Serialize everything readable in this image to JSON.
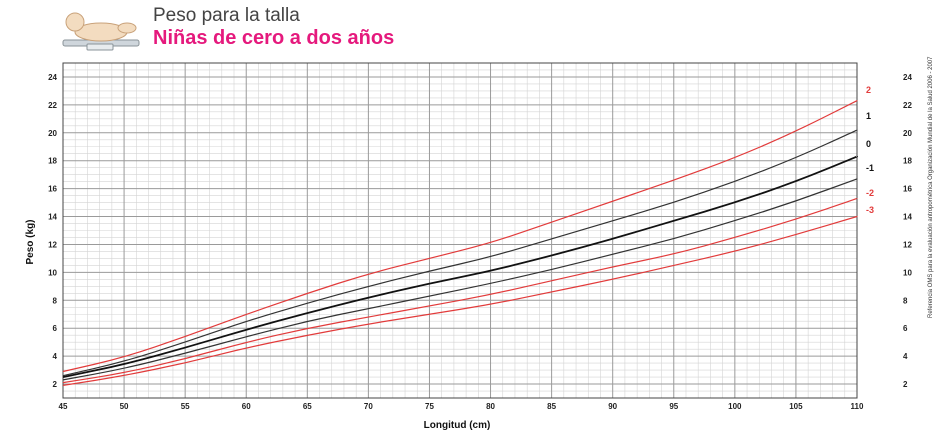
{
  "header": {
    "title": "Peso para la talla",
    "subtitle": "Niñas de cero a dos años"
  },
  "side_credit": "Referencia OMS para la evaluación antropométrica  Organización Mundial de la Salud  2006 - 2007",
  "colors": {
    "red_curve": "#e23b3b",
    "median_curve": "#111111",
    "dark_curve": "#333333",
    "grid_major": "#9a9a9a",
    "grid_minor": "#d4d4d4",
    "subtitle": "#e5197d"
  },
  "chart_data": {
    "type": "line",
    "title": "Peso para la talla",
    "subtitle": "Niñas de cero a dos años",
    "xlabel": "Longitud (cm)",
    "ylabel": "Peso (kg)",
    "xlim": [
      45,
      110
    ],
    "ylim": [
      1,
      25
    ],
    "x_ticks": [
      45,
      50,
      55,
      60,
      65,
      70,
      75,
      80,
      85,
      90,
      95,
      100,
      105,
      110
    ],
    "y_ticks": [
      2,
      4,
      6,
      8,
      10,
      12,
      14,
      16,
      18,
      20,
      22,
      24
    ],
    "grid": true,
    "x": [
      45,
      50,
      55,
      60,
      65,
      70,
      75,
      80,
      85,
      90,
      95,
      100,
      105,
      110
    ],
    "series": [
      {
        "name": "2",
        "color": "#e23b3b",
        "values": [
          2.9,
          3.9,
          5.4,
          7.0,
          8.5,
          9.9,
          11.0,
          12.1,
          13.6,
          15.1,
          16.6,
          18.2,
          20.1,
          22.3
        ]
      },
      {
        "name": "1",
        "color": "#333333",
        "values": [
          2.6,
          3.6,
          5.0,
          6.5,
          7.8,
          9.0,
          10.1,
          11.1,
          12.4,
          13.7,
          15.0,
          16.5,
          18.2,
          20.2
        ]
      },
      {
        "name": "0",
        "color": "#111111",
        "values": [
          2.5,
          3.4,
          4.6,
          5.9,
          7.1,
          8.2,
          9.2,
          10.1,
          11.2,
          12.4,
          13.7,
          15.0,
          16.5,
          18.3
        ]
      },
      {
        "name": "-1",
        "color": "#333333",
        "values": [
          2.3,
          3.1,
          4.2,
          5.4,
          6.5,
          7.4,
          8.3,
          9.2,
          10.2,
          11.3,
          12.4,
          13.7,
          15.1,
          16.7
        ]
      },
      {
        "name": "-2",
        "color": "#e23b3b",
        "values": [
          2.1,
          2.8,
          3.8,
          5.0,
          6.0,
          6.8,
          7.6,
          8.4,
          9.4,
          10.4,
          11.3,
          12.5,
          13.8,
          15.3
        ]
      },
      {
        "name": "-3",
        "color": "#e23b3b",
        "values": [
          1.9,
          2.6,
          3.5,
          4.6,
          5.5,
          6.3,
          7.0,
          7.7,
          8.6,
          9.5,
          10.5,
          11.5,
          12.7,
          14.0
        ]
      }
    ]
  }
}
